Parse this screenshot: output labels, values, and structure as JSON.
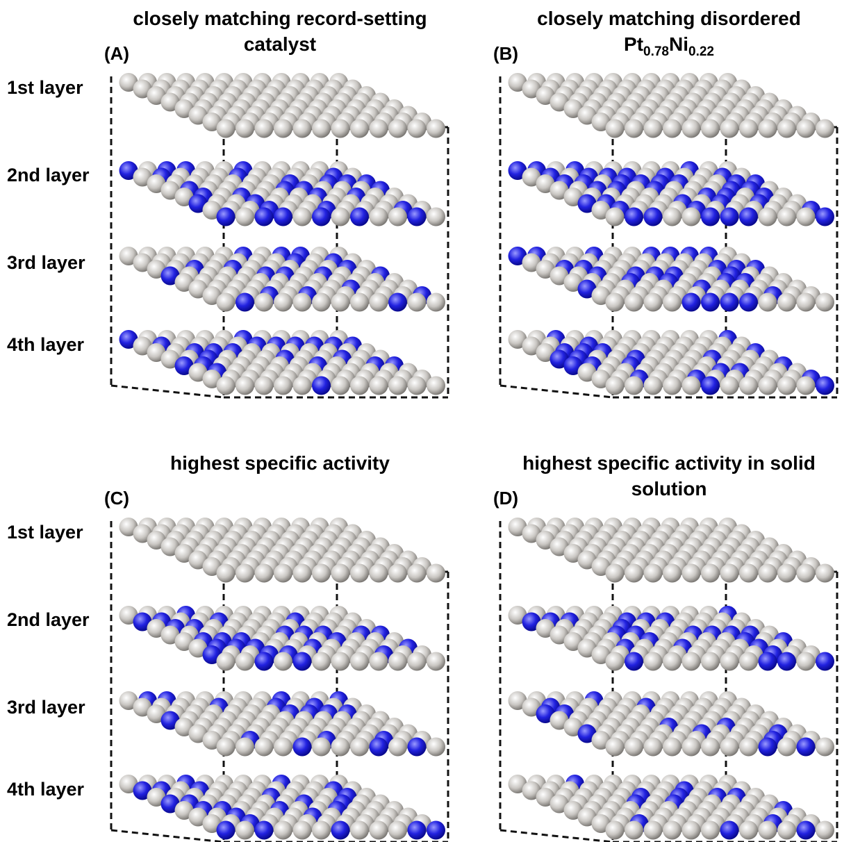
{
  "panels": [
    {
      "label": "(A)",
      "title": [
        "closely matching record-setting",
        "catalyst"
      ],
      "layers": [
        "1st layer",
        "2nd layer",
        "3rd layer",
        "4th layer"
      ]
    },
    {
      "label": "(B)",
      "title": [
        "closely matching disordered"
      ],
      "formula": [
        {
          "text": "Pt",
          "sub": "0.78"
        },
        {
          "text": "Ni",
          "sub": "0.22"
        }
      ]
    },
    {
      "label": "(C)",
      "title": [
        "highest specific activity"
      ],
      "layers": [
        "1st layer",
        "2nd layer",
        "3rd layer",
        "4th layer"
      ]
    },
    {
      "label": "(D)",
      "title": [
        "highest specific activity in solid",
        "solution"
      ]
    }
  ]
}
